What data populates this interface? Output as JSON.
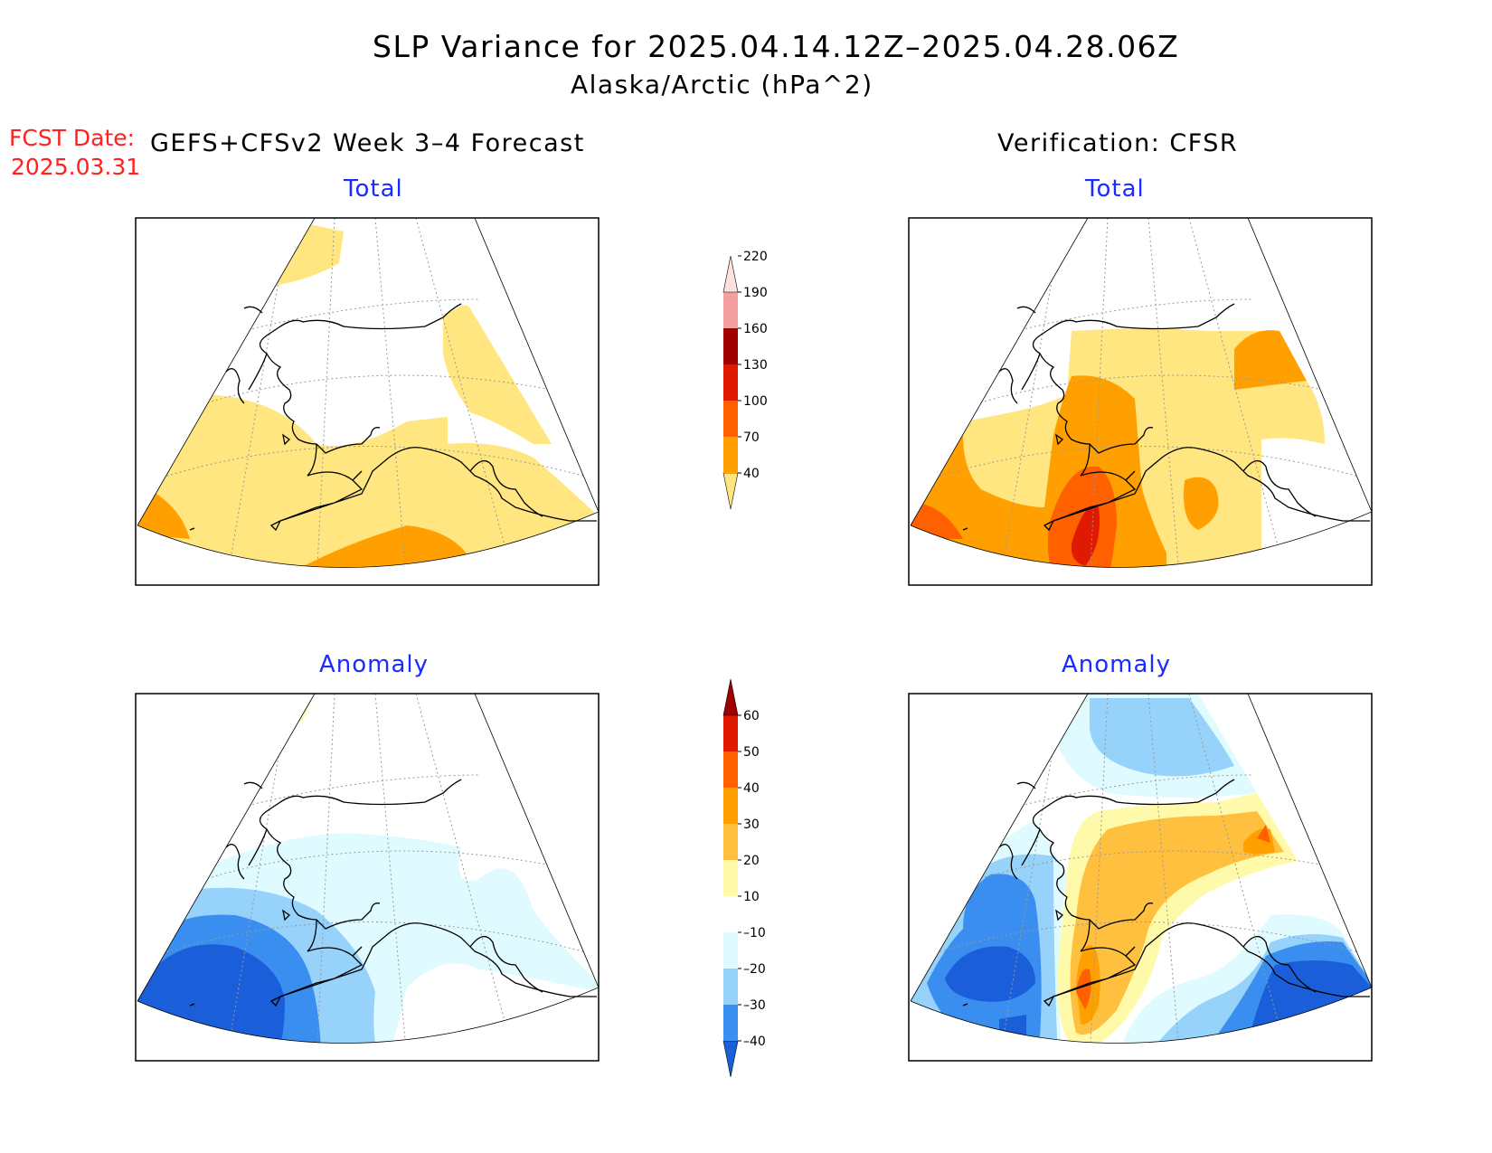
{
  "header": {
    "title": "SLP Variance for 2025.04.14.12Z–2025.04.28.06Z",
    "subtitle": "Alaska/Arctic (hPa^2)",
    "fcst_date_label": "FCST Date:",
    "fcst_date_value": "2025.03.31",
    "forecast_label": "GEFS+CFSv2 Week 3–4 Forecast",
    "verification_label": "Verification: CFSR"
  },
  "panels": [
    {
      "id": "forecast-total",
      "title": "Total"
    },
    {
      "id": "verification-total",
      "title": "Total"
    },
    {
      "id": "forecast-anomaly",
      "title": "Anomaly"
    },
    {
      "id": "verification-anomaly",
      "title": "Anomaly"
    }
  ],
  "colorbars": {
    "total": {
      "levels": [
        "40",
        "70",
        "100",
        "130",
        "160",
        "190",
        "220"
      ],
      "colors": [
        "#ffe680",
        "#ffa000",
        "#ff6000",
        "#e01a00",
        "#a00000",
        "#f4a0a0",
        "#ffe0e0"
      ]
    },
    "anomaly": {
      "levels": [
        "–40",
        "–30",
        "–20",
        "–10",
        "10",
        "20",
        "30",
        "40",
        "50",
        "60"
      ],
      "colors": [
        "#1a5fd9",
        "#3a8ef0",
        "#96d2fa",
        "#e0fbff",
        "#ffffff",
        "#fffaaa",
        "#ffc040",
        "#ffa000",
        "#ff6000",
        "#e01a00",
        "#a00000"
      ]
    }
  },
  "colors": {
    "title_blue": "#1a2bff",
    "fcst_red": "#ff2020"
  }
}
